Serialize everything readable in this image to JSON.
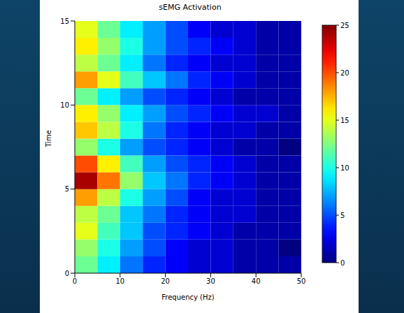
{
  "chart_data": {
    "type": "heatmap",
    "title": "sEMG Activation",
    "x_label": "Frequency (Hz)",
    "y_label": "Time",
    "x_bins": [
      0,
      5,
      10,
      15,
      20,
      25,
      30,
      35,
      40,
      45,
      50
    ],
    "y_bins": [
      0,
      1,
      2,
      3,
      4,
      5,
      6,
      7,
      8,
      9,
      10,
      11,
      12,
      13,
      14,
      15
    ],
    "cells": [
      [
        12,
        9,
        6,
        4,
        3,
        2,
        2,
        1,
        1,
        1
      ],
      [
        13,
        10,
        7,
        5,
        3,
        2,
        2,
        1,
        1,
        0
      ],
      [
        15,
        11,
        8,
        5,
        4,
        3,
        2,
        1,
        1,
        1
      ],
      [
        14,
        12,
        8,
        6,
        4,
        3,
        2,
        2,
        1,
        1
      ],
      [
        18,
        14,
        10,
        7,
        5,
        3,
        2,
        2,
        1,
        1
      ],
      [
        24,
        19,
        13,
        8,
        6,
        4,
        3,
        2,
        1,
        1
      ],
      [
        20,
        16,
        11,
        7,
        5,
        4,
        3,
        2,
        1,
        1
      ],
      [
        13,
        10,
        7,
        5,
        4,
        3,
        2,
        1,
        1,
        0
      ],
      [
        17,
        14,
        10,
        6,
        4,
        3,
        2,
        2,
        1,
        1
      ],
      [
        16,
        13,
        9,
        7,
        5,
        4,
        3,
        2,
        2,
        1
      ],
      [
        12,
        9,
        7,
        5,
        4,
        3,
        2,
        1,
        1,
        1
      ],
      [
        18,
        15,
        11,
        8,
        6,
        4,
        3,
        2,
        1,
        1
      ],
      [
        14,
        12,
        9,
        6,
        4,
        3,
        2,
        2,
        1,
        1
      ],
      [
        16,
        13,
        10,
        7,
        5,
        4,
        3,
        2,
        1,
        1
      ],
      [
        15,
        12,
        9,
        7,
        5,
        3,
        2,
        2,
        1,
        1
      ]
    ],
    "xlim": [
      0,
      50
    ],
    "xticks": [
      0,
      10,
      20,
      30,
      40,
      50
    ],
    "ylim": [
      0,
      15
    ],
    "yticks": [
      0,
      5,
      10,
      15
    ],
    "colorbar": {
      "range": [
        0,
        25
      ],
      "ticks": [
        0,
        5,
        10,
        15,
        20,
        25
      ]
    }
  }
}
